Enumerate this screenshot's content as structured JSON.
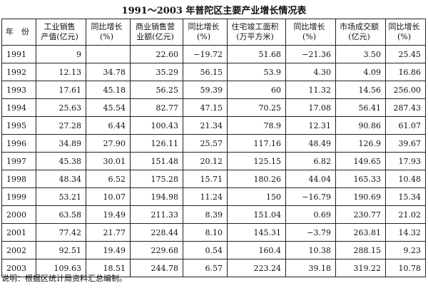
{
  "header": {
    "title": "1991～2003 年普陀区主要产业增长情况表"
  },
  "table": {
    "columns": [
      [
        "年　份"
      ],
      [
        "工业销售",
        "产值(亿元)"
      ],
      [
        "同比增长",
        "(%)"
      ],
      [
        "商业销售营",
        "业额(亿元)"
      ],
      [
        "同比增长",
        "(%)"
      ],
      [
        "住宅竣工面积",
        "(万平方米)"
      ],
      [
        "同比增长",
        "(%)"
      ],
      [
        "市场成交额",
        "(亿元)"
      ],
      [
        "同比增长",
        "(%)"
      ]
    ],
    "rows": [
      [
        "1991",
        "9",
        null,
        "22.60",
        "−19.72",
        "51.68",
        "−21.36",
        "3.50",
        "25.45"
      ],
      [
        "1992",
        "12.13",
        "34.78",
        "35.29",
        "56.15",
        "53.9",
        "4.30",
        "4.09",
        "16.86"
      ],
      [
        "1993",
        "17.61",
        "45.18",
        "56.25",
        "59.39",
        "60",
        "11.32",
        "14.56",
        "256.00"
      ],
      [
        "1994",
        "25.63",
        "45.54",
        "82.77",
        "47.15",
        "70.25",
        "17.08",
        "56.41",
        "287.43"
      ],
      [
        "1995",
        "27.28",
        "6.44",
        "100.43",
        "21.34",
        "78.9",
        "12.31",
        "90.86",
        "61.07"
      ],
      [
        "1996",
        "34.89",
        "27.90",
        "126.11",
        "25.57",
        "117.16",
        "48.49",
        "126.9",
        "39.67"
      ],
      [
        "1997",
        "45.38",
        "30.01",
        "151.48",
        "20.12",
        "125.15",
        "6.82",
        "149.65",
        "17.93"
      ],
      [
        "1998",
        "48.34",
        "6.52",
        "175.28",
        "15.71",
        "180.26",
        "44.04",
        "165.33",
        "10.48"
      ],
      [
        "1999",
        "53.21",
        "10.07",
        "194.98",
        "11.24",
        "150",
        "−16.79",
        "190.69",
        "15.34"
      ],
      [
        "2000",
        "63.58",
        "19.49",
        "211.33",
        "8.39",
        "151.04",
        "0.69",
        "230.77",
        "21.02"
      ],
      [
        "2001",
        "77.42",
        "21.77",
        "228.44",
        "8.10",
        "145.31",
        "−3.79",
        "263.81",
        "14.32"
      ],
      [
        "2002",
        "92.51",
        "19.49",
        "229.68",
        "0.54",
        "160.4",
        "10.38",
        "288.15",
        "9.23"
      ],
      [
        "2003",
        "109.63",
        "18.51",
        "244.78",
        "6.57",
        "223.24",
        "39.18",
        "319.22",
        "10.78"
      ]
    ]
  },
  "footer": {
    "note": "说明：根据区统计局资料汇总编制。"
  }
}
